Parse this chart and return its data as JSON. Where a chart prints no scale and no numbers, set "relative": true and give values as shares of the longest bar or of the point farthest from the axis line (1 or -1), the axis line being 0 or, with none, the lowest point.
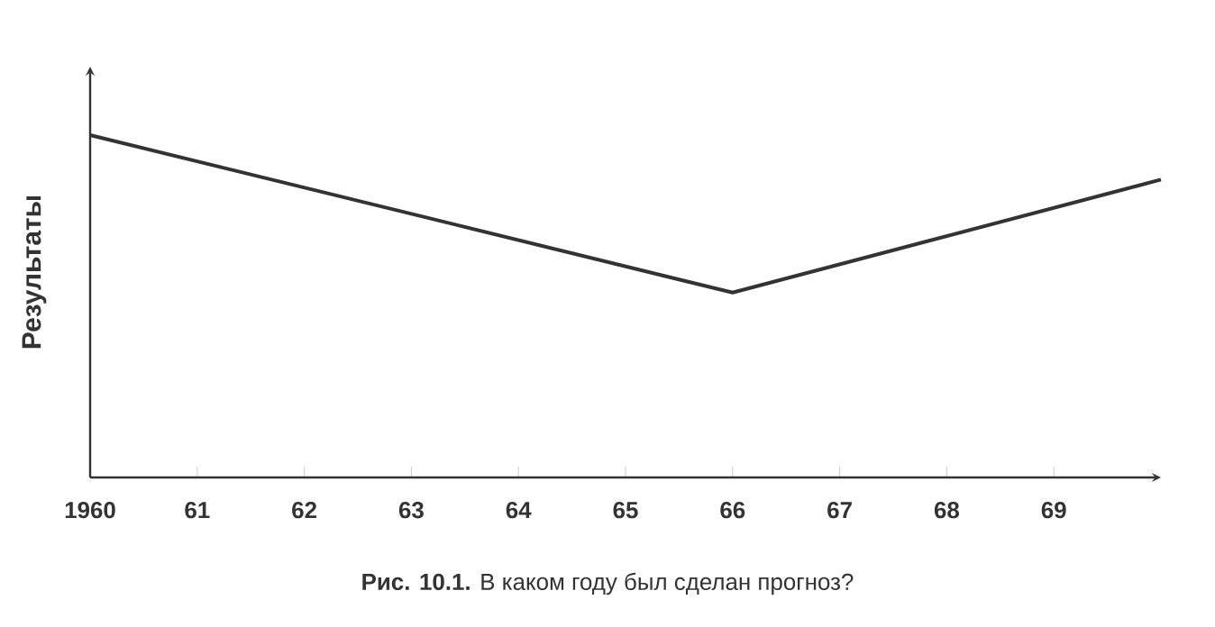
{
  "chart_data": {
    "type": "line",
    "relative": true,
    "ylabel": "Результаты",
    "annotations": [
      "**Рис. 10.1.** В каком году был сделан прогноз?"
    ],
    "x": [
      1960,
      1966,
      1970
    ],
    "values": [
      1,
      0.54,
      0.87
    ],
    "color": "#333333",
    "xlim": [
      1960,
      1970
    ],
    "xticks": [
      1960,
      {
        "value": 1961,
        "label": "61"
      },
      {
        "value": 1962,
        "label": "62"
      },
      {
        "value": 1963,
        "label": "63"
      },
      {
        "value": 1964,
        "label": "64"
      },
      {
        "value": 1965,
        "label": "65"
      },
      {
        "value": 1966,
        "label": "66"
      },
      {
        "value": 1967,
        "label": "67"
      },
      {
        "value": 1968,
        "label": "68"
      },
      {
        "value": 1969,
        "label": "69"
      }
    ]
  }
}
